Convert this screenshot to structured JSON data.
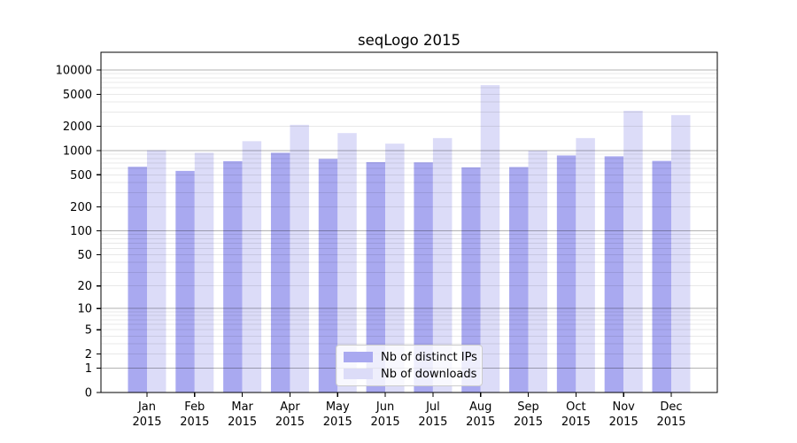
{
  "title": "seqLogo 2015",
  "chart_data": {
    "type": "bar",
    "title": "seqLogo 2015",
    "categories": [
      "Jan 2015",
      "Feb 2015",
      "Mar 2015",
      "Apr 2015",
      "May 2015",
      "Jun 2015",
      "Jul 2015",
      "Aug 2015",
      "Sep 2015",
      "Oct 2015",
      "Nov 2015",
      "Dec 2015"
    ],
    "series": [
      {
        "name": "Nb of distinct IPs",
        "color": "#a9a9f0",
        "values": [
          630,
          560,
          740,
          940,
          790,
          720,
          715,
          620,
          625,
          870,
          850,
          745
        ]
      },
      {
        "name": "Nb of downloads",
        "color": "#dcdcf8",
        "values": [
          1010,
          940,
          1310,
          2090,
          1650,
          1220,
          1430,
          6500,
          1000,
          1430,
          3120,
          2760
        ]
      }
    ],
    "xlabel": "",
    "ylabel": "",
    "yscale": "log1p",
    "yticks": [
      0,
      1,
      2,
      5,
      10,
      20,
      50,
      100,
      200,
      500,
      1000,
      2000,
      5000,
      10000
    ],
    "ylim": [
      0,
      16600
    ],
    "grid": true,
    "grid_on_top_of_bars": true,
    "legend_position": "lower center"
  },
  "colors": {
    "major_grid": "rgba(0,0,0,0.30)",
    "minor_grid": "rgba(0,0,0,0.09)",
    "axis": "#000000",
    "text": "#000000",
    "background": "#ffffff"
  }
}
